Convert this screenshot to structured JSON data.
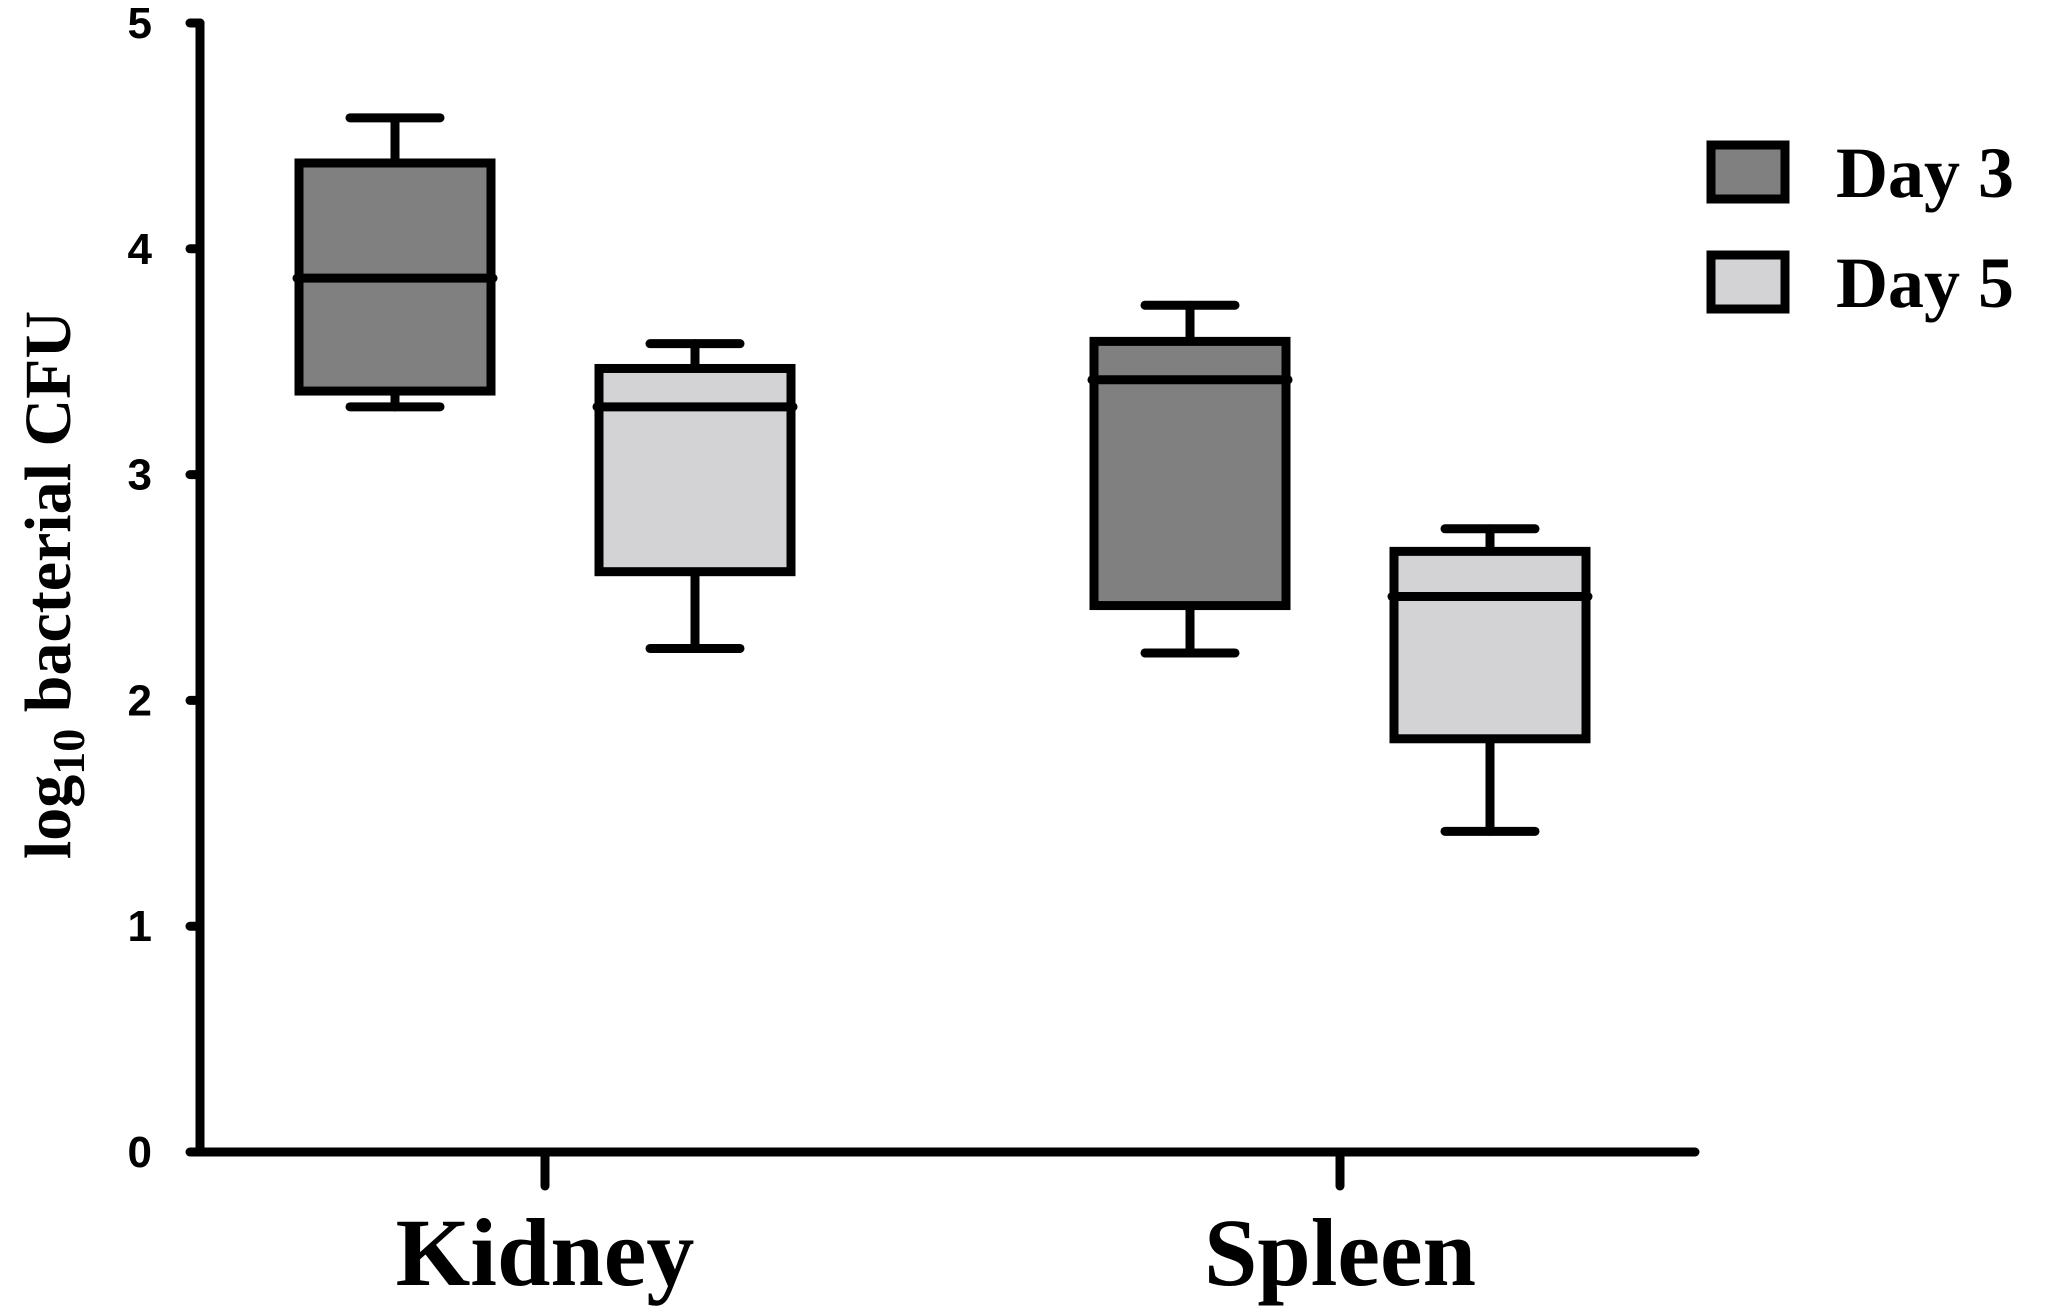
{
  "chart_data": {
    "type": "box",
    "ylabel": {
      "prefix": "log",
      "subscript": "10",
      "suffix": " bacterial CFU"
    },
    "xlabel": "",
    "ylim": [
      0,
      5
    ],
    "yticks": [
      "0",
      "1",
      "2",
      "3",
      "4",
      "5"
    ],
    "categories": [
      "Kidney",
      "Spleen"
    ],
    "legend_position": "top-right",
    "series": [
      {
        "name": "Day 3",
        "color": "#808080",
        "boxes": [
          {
            "category": "Kidney",
            "min": 3.3,
            "q1": 3.37,
            "median": 3.87,
            "q3": 4.38,
            "max": 4.58
          },
          {
            "category": "Spleen",
            "min": 2.21,
            "q1": 2.42,
            "median": 3.42,
            "q3": 3.59,
            "max": 3.75
          }
        ]
      },
      {
        "name": "Day 5",
        "color": "#d3d3d5",
        "boxes": [
          {
            "category": "Kidney",
            "min": 2.23,
            "q1": 2.57,
            "median": 3.3,
            "q3": 3.47,
            "max": 3.58
          },
          {
            "category": "Spleen",
            "min": 1.42,
            "q1": 1.83,
            "median": 2.46,
            "q3": 2.66,
            "max": 2.76
          }
        ]
      }
    ]
  }
}
